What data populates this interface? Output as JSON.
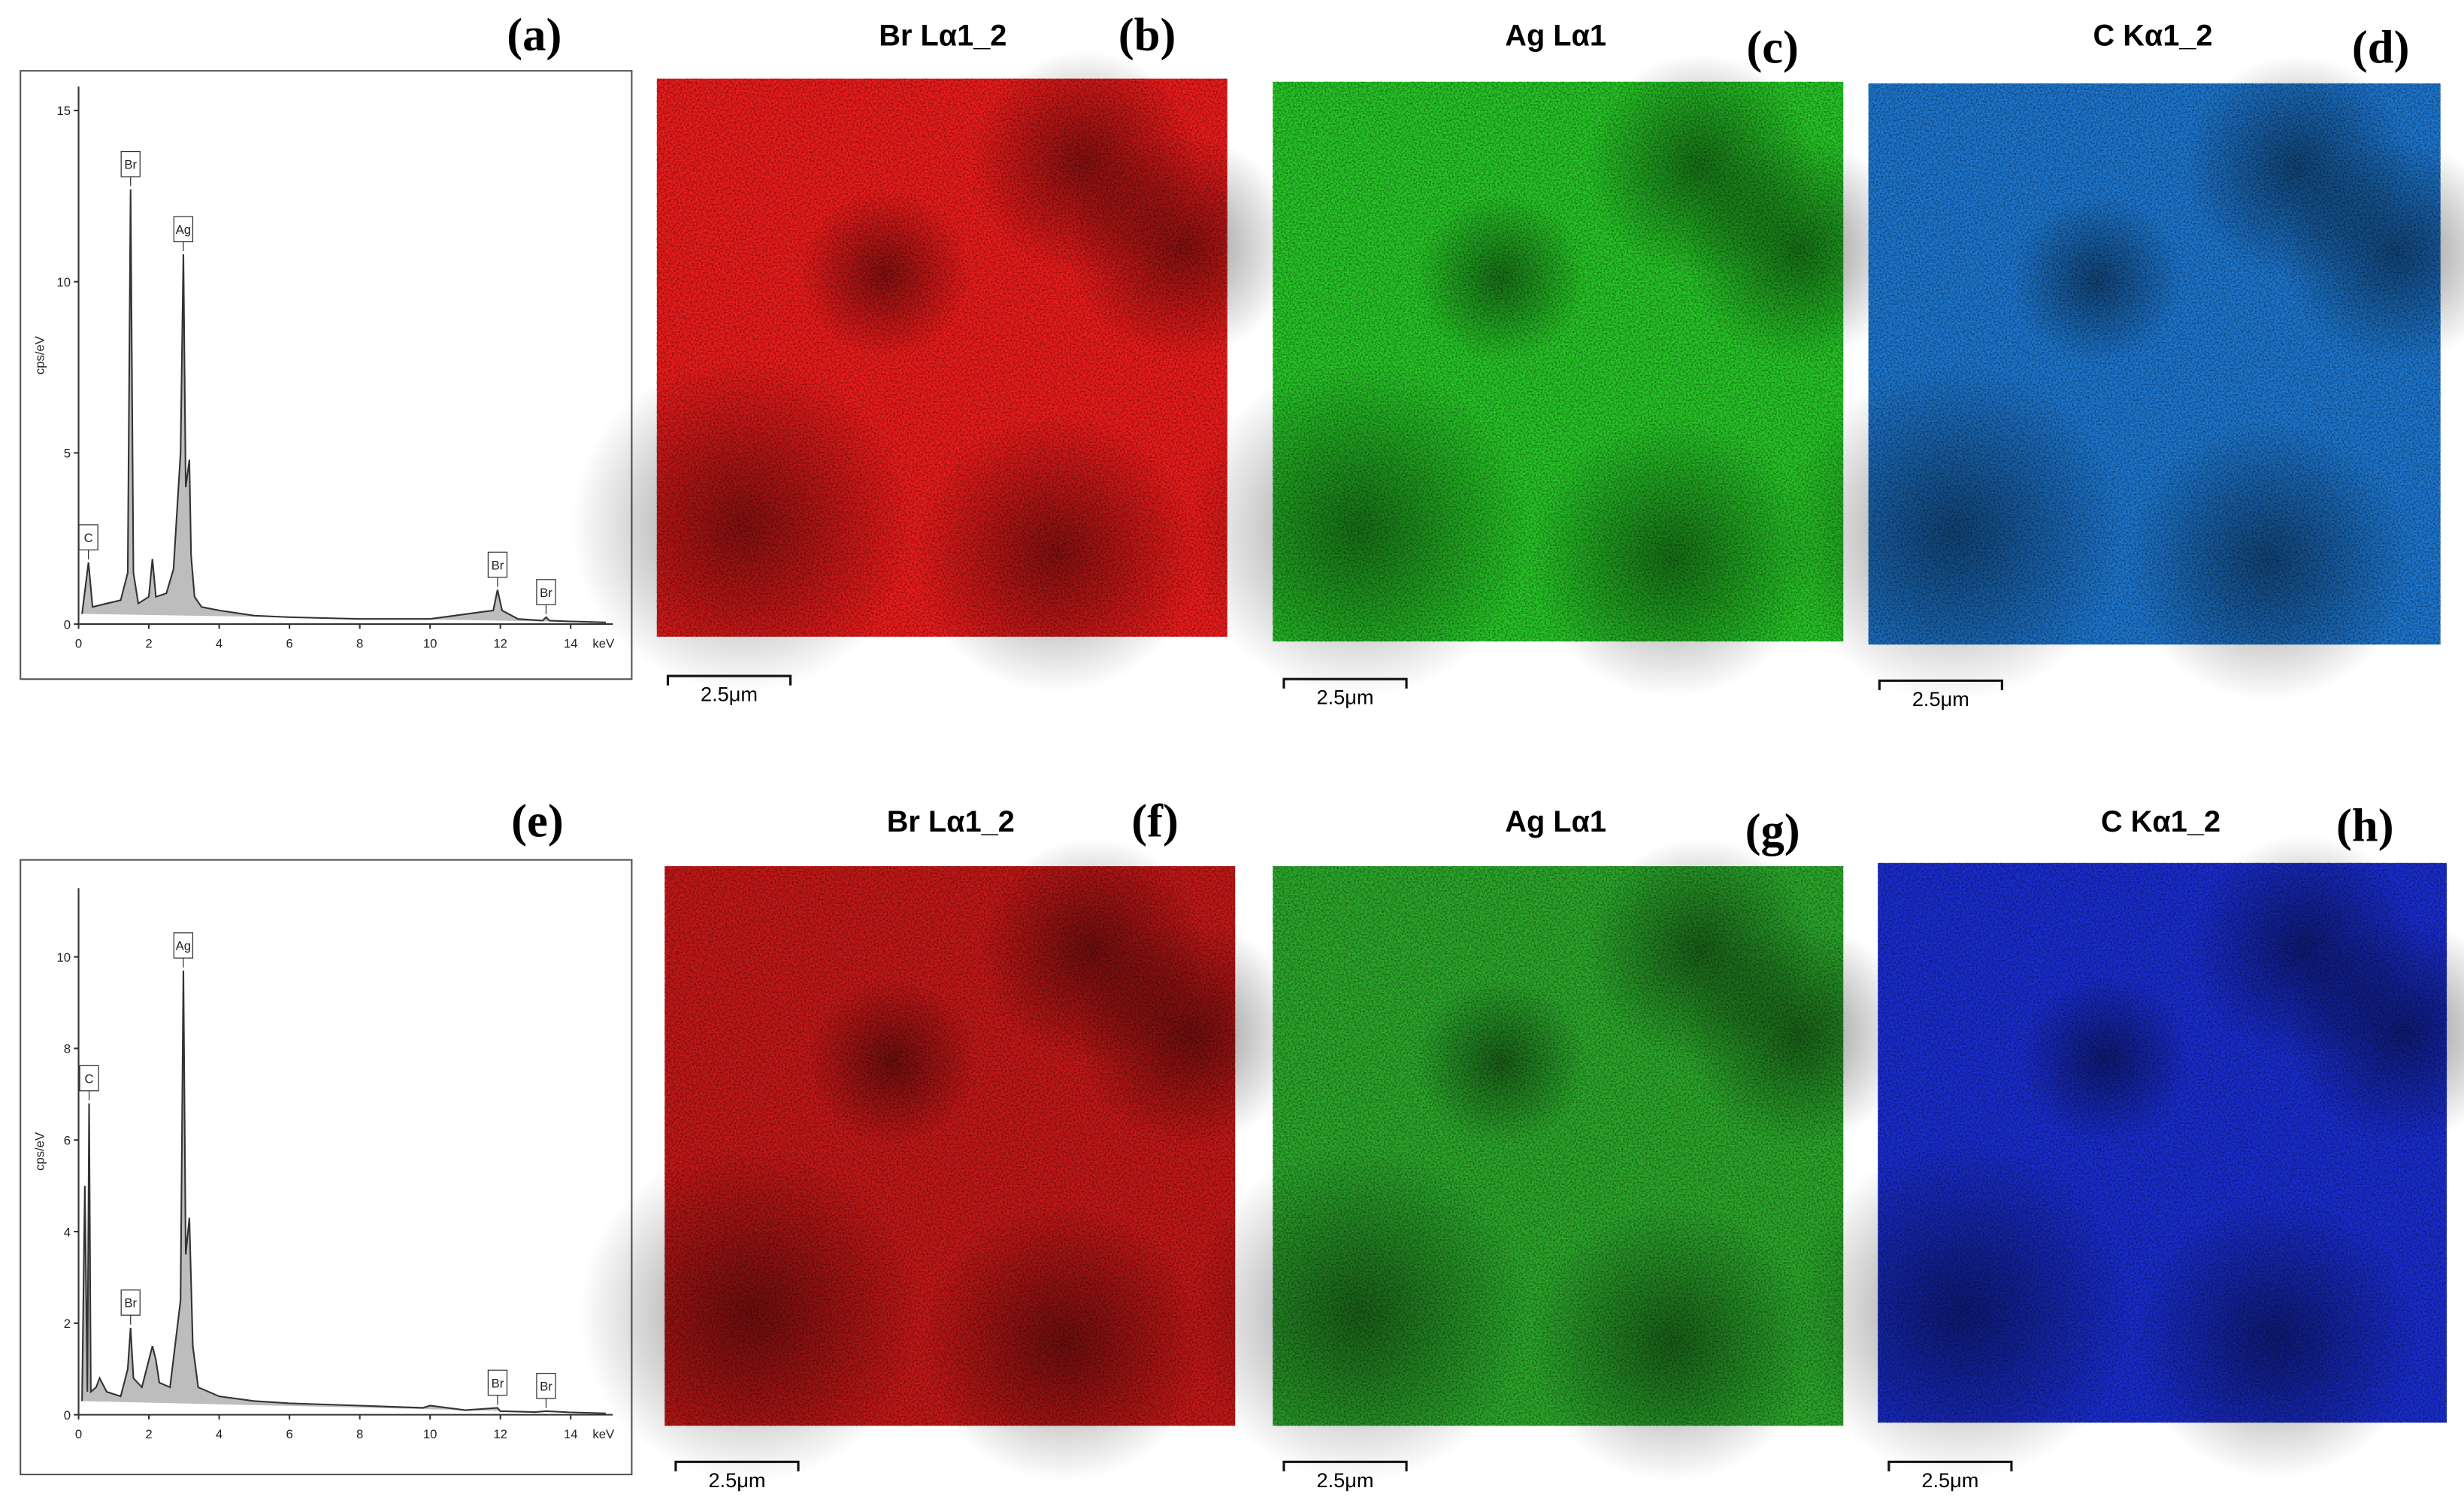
{
  "chart_data": [
    {
      "type": "line",
      "label": "(a)",
      "y_label": "cps/eV",
      "x_label": "keV",
      "xlim": [
        0,
        15.2
      ],
      "ylim": [
        0,
        15.7
      ],
      "xticks": [
        0,
        2,
        4,
        6,
        8,
        10,
        12,
        14
      ],
      "yticks": [
        0,
        5,
        10,
        15
      ],
      "x": [
        0.1,
        0.28,
        0.4,
        0.8,
        1.2,
        1.4,
        1.48,
        1.56,
        1.7,
        2.0,
        2.1,
        2.2,
        2.5,
        2.7,
        2.9,
        2.98,
        3.05,
        3.15,
        3.2,
        3.3,
        3.5,
        4,
        5,
        6,
        8,
        10,
        11.8,
        11.92,
        12.05,
        12.5,
        13.2,
        13.3,
        13.4,
        14,
        15
      ],
      "series": [
        {
          "color": "#333333",
          "values": [
            0.3,
            1.8,
            0.5,
            0.6,
            0.7,
            1.5,
            12.7,
            1.5,
            0.6,
            0.8,
            1.9,
            0.8,
            0.9,
            1.6,
            5,
            10.8,
            4,
            4.8,
            2,
            0.8,
            0.5,
            0.4,
            0.25,
            0.2,
            0.15,
            0.15,
            0.4,
            1.0,
            0.4,
            0.15,
            0.1,
            0.2,
            0.1,
            0.08,
            0.05
          ]
        }
      ],
      "annotations": [
        {
          "text": "C",
          "x": 0.28
        },
        {
          "text": "Br",
          "x": 1.48
        },
        {
          "text": "Ag",
          "x": 2.98
        },
        {
          "text": "Br",
          "x": 11.92
        },
        {
          "text": "Br",
          "x": 13.3
        }
      ]
    },
    {
      "type": "line",
      "label": "(e)",
      "y_label": "cps/eV",
      "x_label": "keV",
      "xlim": [
        0,
        15.2
      ],
      "ylim": [
        0,
        11.5
      ],
      "xticks": [
        0,
        2,
        4,
        6,
        8,
        10,
        12,
        14
      ],
      "yticks": [
        0,
        2,
        4,
        6,
        8,
        10
      ],
      "x": [
        0.1,
        0.18,
        0.25,
        0.3,
        0.35,
        0.5,
        0.6,
        0.8,
        1.2,
        1.4,
        1.48,
        1.56,
        1.8,
        2.1,
        2.2,
        2.3,
        2.6,
        2.9,
        2.98,
        3.05,
        3.15,
        3.25,
        3.4,
        4,
        5,
        6,
        8,
        9.8,
        10,
        11,
        11.92,
        12,
        13,
        13.3,
        14,
        15
      ],
      "series": [
        {
          "color": "#333333",
          "values": [
            0.3,
            5,
            0.5,
            6.8,
            0.5,
            0.6,
            0.8,
            0.5,
            0.4,
            1,
            1.9,
            0.8,
            0.6,
            1.5,
            1.2,
            0.7,
            0.6,
            2.5,
            9.7,
            3.5,
            4.3,
            1.5,
            0.6,
            0.4,
            0.3,
            0.25,
            0.2,
            0.15,
            0.2,
            0.1,
            0.15,
            0.08,
            0.06,
            0.08,
            0.05,
            0.03
          ]
        }
      ],
      "annotations": [
        {
          "text": "C",
          "x": 0.3
        },
        {
          "text": "Ag",
          "x": 2.98
        },
        {
          "text": "Br",
          "x": 1.48
        },
        {
          "text": "Br",
          "x": 11.92
        },
        {
          "text": "Br",
          "x": 13.3
        }
      ]
    }
  ],
  "maps": [
    {
      "label": "(b)",
      "title": "Br Lα1_2",
      "scale_bar": "2.5μm",
      "color": "#f01c1c"
    },
    {
      "label": "(c)",
      "title": "Ag Lα1",
      "scale_bar": "2.5μm",
      "color": "#28c828"
    },
    {
      "label": "(d)",
      "title": "C Kα1_2",
      "scale_bar": "2.5μm",
      "color": "#1e78d2"
    },
    {
      "label": "(f)",
      "title": "Br Lα1_2",
      "scale_bar": "2.5μm",
      "color": "#c81818"
    },
    {
      "label": "(g)",
      "title": "Ag Lα1",
      "scale_bar": "2.5μm",
      "color": "#2caa2c"
    },
    {
      "label": "(h)",
      "title": "C Kα1_2",
      "scale_bar": "2.5μm",
      "color": "#1a2ed2"
    }
  ]
}
